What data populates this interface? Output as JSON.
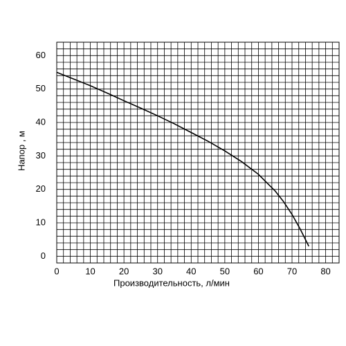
{
  "chart_data": {
    "type": "line",
    "x_label": "Производительность, л/мин",
    "y_label": "Напор , м",
    "series": [
      {
        "color": "#000000",
        "x": [
          0,
          5,
          10,
          15,
          20,
          25,
          30,
          35,
          40,
          45,
          50,
          55,
          60,
          65,
          67.5,
          70,
          72.5,
          73.5,
          75
        ],
        "values": [
          55,
          53,
          51,
          48.8,
          46.5,
          44.3,
          42,
          39.6,
          37,
          34.4,
          31.5,
          28.3,
          24.5,
          19.5,
          16.3,
          12.5,
          8,
          6,
          3
        ]
      }
    ],
    "xlim": [
      0,
      84
    ],
    "ylim": [
      -2,
      64
    ],
    "xticks": [
      0,
      10,
      20,
      30,
      40,
      50,
      60,
      70,
      80
    ],
    "yticks": [
      0,
      10,
      20,
      30,
      40,
      50,
      60
    ],
    "grid": true,
    "grid_step": 2
  }
}
